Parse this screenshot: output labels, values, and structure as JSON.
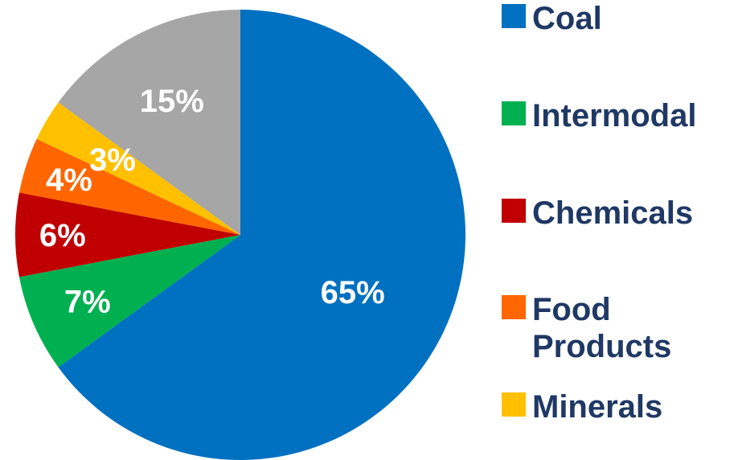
{
  "chart_data": {
    "type": "pie",
    "title": "",
    "legend_position": "right",
    "slices": [
      {
        "name": "Coal",
        "value": 65,
        "label": "65%",
        "color": "#0070C0"
      },
      {
        "name": "Intermodal",
        "value": 7,
        "label": "7%",
        "color": "#00B050"
      },
      {
        "name": "Chemicals",
        "value": 6,
        "label": "6%",
        "color": "#C00000"
      },
      {
        "name": "Food Products",
        "value": 4,
        "label": "4%",
        "color": "#FF6600"
      },
      {
        "name": "Minerals",
        "value": 3,
        "label": "3%",
        "color": "#FFC000"
      },
      {
        "name": "",
        "value": 15,
        "label": "15%",
        "color": "#A6A6A6"
      }
    ]
  },
  "legend": {
    "items": [
      {
        "label": "Coal",
        "color": "#0070C0"
      },
      {
        "label": "Intermodal",
        "color": "#00B050"
      },
      {
        "label": "Chemicals",
        "color": "#C00000"
      },
      {
        "label": "Food Products",
        "color": "#FF6600"
      },
      {
        "label": "Minerals",
        "color": "#FFC000"
      }
    ]
  }
}
